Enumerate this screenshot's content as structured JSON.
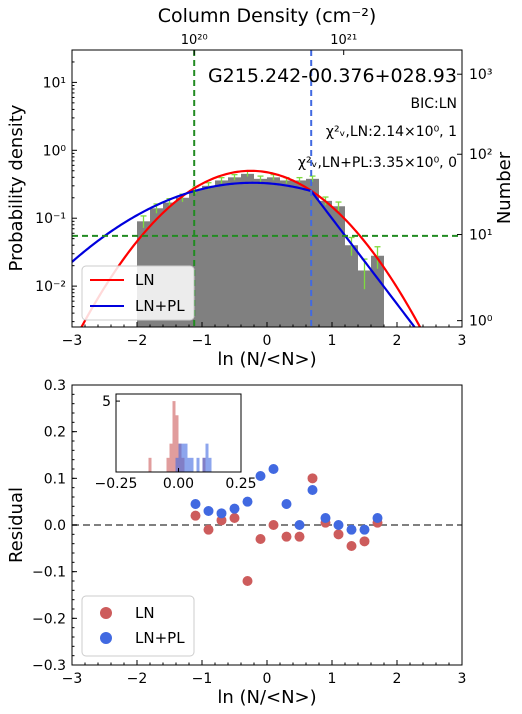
{
  "chart_data": [
    {
      "type": "bar",
      "title": "G215.242-00.376+028.93",
      "xlabel": "ln (N/<N>)",
      "ylabel": "Probability density",
      "y2label": "Number",
      "top_axis_label": "Column Density (cm⁻²)",
      "xlim": [
        -3,
        3
      ],
      "ylim": [
        0.0025,
        30
      ],
      "yscale": "log",
      "xticks": [
        "−3",
        "−2",
        "−1",
        "0",
        "1",
        "2",
        "3"
      ],
      "yticks": [
        "10⁻²",
        "10⁻¹",
        "10⁰",
        "10¹"
      ],
      "y2ticks": [
        "10⁰",
        "10¹",
        "10²",
        "10³"
      ],
      "top_ticks": [
        {
          "label": "10²⁰",
          "x": -1.12
        },
        {
          "label": "10²¹",
          "x": 1.18
        }
      ],
      "annotations": [
        "BIC:LN",
        "χ²ᵥ,LN:2.14×10⁰, 1",
        "χ²ᵥ,LN+PL:3.35×10⁰, 0"
      ],
      "histogram": {
        "color": "#808080",
        "bin_width": 0.2,
        "bins": [
          {
            "x": -2.0,
            "y": 0.09,
            "err": 0.018
          },
          {
            "x": -1.8,
            "y": 0.14,
            "err": 0.022
          },
          {
            "x": -1.6,
            "y": 0.17,
            "err": 0.024
          },
          {
            "x": -1.4,
            "y": 0.2,
            "err": 0.026
          },
          {
            "x": -1.2,
            "y": 0.26,
            "err": 0.03
          },
          {
            "x": -1.0,
            "y": 0.3,
            "err": 0.033
          },
          {
            "x": -0.8,
            "y": 0.36,
            "err": 0.036
          },
          {
            "x": -0.6,
            "y": 0.4,
            "err": 0.038
          },
          {
            "x": -0.4,
            "y": 0.45,
            "err": 0.04
          },
          {
            "x": -0.2,
            "y": 0.38,
            "err": 0.037
          },
          {
            "x": 0.0,
            "y": 0.4,
            "err": 0.038
          },
          {
            "x": 0.2,
            "y": 0.36,
            "err": 0.036
          },
          {
            "x": 0.4,
            "y": 0.36,
            "err": 0.036
          },
          {
            "x": 0.6,
            "y": 0.38,
            "err": 0.037
          },
          {
            "x": 0.8,
            "y": 0.18,
            "err": 0.025
          },
          {
            "x": 1.0,
            "y": 0.15,
            "err": 0.023
          },
          {
            "x": 1.2,
            "y": 0.04,
            "err": 0.012
          },
          {
            "x": 1.4,
            "y": 0.017,
            "err": 0.008
          },
          {
            "x": 1.6,
            "y": 0.028,
            "err": 0.01
          }
        ]
      },
      "series": [
        {
          "name": "LN",
          "color": "#ff0000",
          "model": "lognormal",
          "mu": -0.25,
          "sigma": 0.8
        },
        {
          "name": "LN+PL",
          "color": "#0000dd",
          "model": "lognormal_powerlaw",
          "mu": -0.22,
          "sigma": 1.2,
          "s_break": 0.68,
          "slope": -2.9
        }
      ],
      "reference_lines": [
        {
          "orientation": "vertical",
          "x": -1.12,
          "color": "#228B22",
          "style": "dashed"
        },
        {
          "orientation": "horizontal",
          "y": 0.055,
          "color": "#228B22",
          "style": "dashed"
        },
        {
          "orientation": "vertical",
          "x": 0.68,
          "color": "#4169E1",
          "style": "dashed"
        }
      ],
      "legend": {
        "position": "bottom-left",
        "entries": [
          "LN",
          "LN+PL"
        ]
      }
    },
    {
      "type": "scatter",
      "xlabel": "ln (N/<N>)",
      "ylabel": "Residual",
      "xlim": [
        -3,
        3
      ],
      "ylim": [
        -0.3,
        0.3
      ],
      "xticks": [
        "−3",
        "−2",
        "−1",
        "0",
        "1",
        "2",
        "3"
      ],
      "yticks": [
        "−0.3",
        "−0.2",
        "−0.1",
        "0.0",
        "0.1",
        "0.2",
        "0.3"
      ],
      "zero_line": {
        "y": 0,
        "color": "#808080",
        "style": "dashed"
      },
      "series": [
        {
          "name": "LN",
          "color": "#cd5c5c",
          "points": [
            [
              -1.1,
              0.02
            ],
            [
              -0.9,
              -0.01
            ],
            [
              -0.7,
              0.01
            ],
            [
              -0.5,
              0.015
            ],
            [
              -0.3,
              -0.12
            ],
            [
              -0.1,
              -0.03
            ],
            [
              0.1,
              0.0
            ],
            [
              0.3,
              -0.025
            ],
            [
              0.5,
              -0.025
            ],
            [
              0.7,
              0.1
            ],
            [
              0.9,
              0.005
            ],
            [
              1.1,
              -0.02
            ],
            [
              1.3,
              -0.045
            ],
            [
              1.5,
              -0.035
            ],
            [
              1.7,
              0.005
            ]
          ]
        },
        {
          "name": "LN+PL",
          "color": "#4169e1",
          "points": [
            [
              -1.1,
              0.045
            ],
            [
              -0.9,
              0.03
            ],
            [
              -0.7,
              0.025
            ],
            [
              -0.5,
              0.035
            ],
            [
              -0.3,
              0.05
            ],
            [
              -0.1,
              0.105
            ],
            [
              0.1,
              0.12
            ],
            [
              0.3,
              0.045
            ],
            [
              0.5,
              0.0
            ],
            [
              0.7,
              0.075
            ],
            [
              0.9,
              0.015
            ],
            [
              1.1,
              0.0
            ],
            [
              1.3,
              -0.01
            ],
            [
              1.5,
              -0.01
            ],
            [
              1.7,
              0.015
            ]
          ]
        }
      ],
      "legend": {
        "position": "bottom-left",
        "entries": [
          "LN",
          "LN+PL"
        ]
      },
      "inset": {
        "type": "histogram",
        "xlim": [
          -0.25,
          0.25
        ],
        "ylim": [
          0,
          5.5
        ],
        "xticks": [
          "−0.25",
          "0.00",
          "0.25"
        ],
        "yticks": [
          "5"
        ],
        "bin_width": 0.012,
        "series": [
          {
            "name": "LN",
            "color": "#cd5c5c",
            "bins": [
              [
                -0.12,
                1
              ],
              [
                -0.048,
                1
              ],
              [
                -0.036,
                2
              ],
              [
                -0.024,
                5
              ],
              [
                -0.012,
                4
              ],
              [
                0.0,
                2
              ],
              [
                0.012,
                1
              ],
              [
                0.096,
                1
              ]
            ]
          },
          {
            "name": "LN+PL",
            "color": "#4169e1",
            "bins": [
              [
                -0.012,
                1
              ],
              [
                0.0,
                2
              ],
              [
                0.012,
                2
              ],
              [
                0.024,
                2
              ],
              [
                0.036,
                1
              ],
              [
                0.048,
                1
              ],
              [
                0.072,
                1
              ],
              [
                0.096,
                1
              ],
              [
                0.108,
                2
              ],
              [
                0.12,
                1
              ]
            ]
          }
        ]
      }
    }
  ]
}
